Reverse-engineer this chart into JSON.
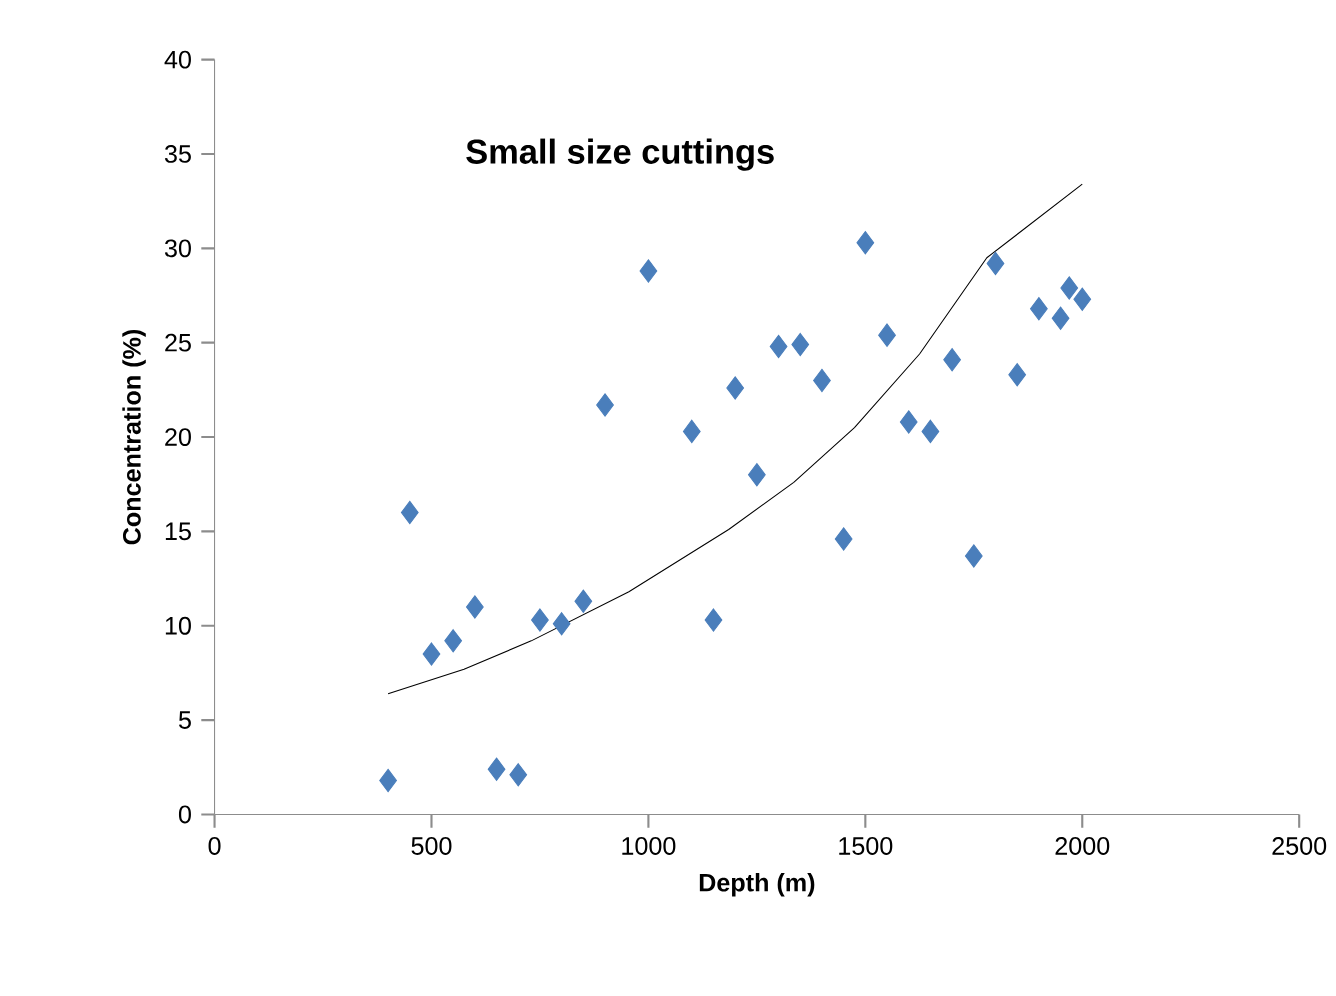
{
  "chart_data": {
    "type": "scatter",
    "title": "Small size cuttings",
    "xlabel": "Depth (m)",
    "ylabel": "Concentration (%)",
    "xlim": [
      0,
      2500
    ],
    "xticks": [
      0,
      500,
      1000,
      1500,
      2000,
      2500
    ],
    "ylim": [
      0,
      40
    ],
    "yticks": [
      0,
      5,
      10,
      15,
      20,
      25,
      30,
      35,
      40
    ],
    "grid": false,
    "marker": "diamond",
    "series": [
      {
        "color": "#4a7ebb",
        "x": [
          400,
          450,
          500,
          550,
          600,
          650,
          700,
          750,
          800,
          850,
          900,
          1000,
          1100,
          1150,
          1200,
          1250,
          1300,
          1350,
          1400,
          1450,
          1500,
          1550,
          1600,
          1650,
          1700,
          1750,
          1800,
          1850,
          1900,
          1950,
          1970,
          2000
        ],
        "values": [
          1.8,
          16,
          8.5,
          9.2,
          11,
          2.4,
          2.1,
          10.3,
          10.1,
          11.3,
          21.7,
          28.8,
          20.3,
          10.3,
          22.6,
          18,
          24.8,
          24.9,
          23,
          14.6,
          30.3,
          25.4,
          20.8,
          20.3,
          24.1,
          13.7,
          29.2,
          23.3,
          26.8,
          26.3,
          27.9,
          27.3
        ]
      },
      {
        "type": "line",
        "color": "#000000",
        "marker": "none",
        "line_style": "solid",
        "x": [
          400,
          575,
          730,
          955,
          1185,
          1335,
          1475,
          1625,
          1780,
          2000
        ],
        "values": [
          6.4,
          7.7,
          9.2,
          11.8,
          15.1,
          17.6,
          20.5,
          24.4,
          29.5,
          33.4
        ]
      }
    ]
  }
}
